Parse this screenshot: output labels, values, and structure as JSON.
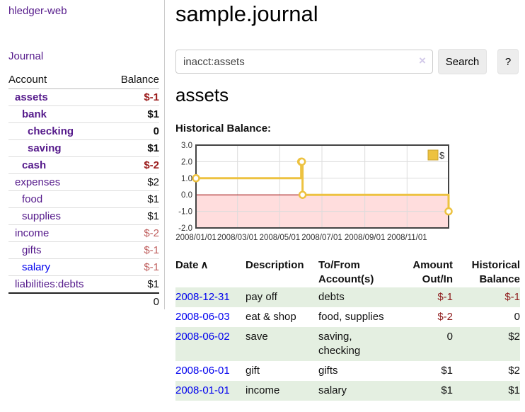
{
  "app_title": "hledger-web",
  "colors": {
    "link_purple": "#551a8b",
    "link_blue": "#0000ee",
    "negative_bold_red": "#9b1b1b",
    "negative_rose": "#c0605f",
    "register_negative_red": "#8f1d1d",
    "row_stripe_green": "#e4efe1",
    "chart_line_gold": "#edc240",
    "chart_negative_fill": "#ffdddd",
    "chart_zero_line": "#990000"
  },
  "sidebar": {
    "journal_link": "Journal",
    "headers": {
      "account": "Account",
      "balance": "Balance"
    },
    "accounts": [
      {
        "name": "assets",
        "balance": "$-1",
        "indent": 1,
        "bold": true,
        "name_color": "purple",
        "balance_color": "darkred"
      },
      {
        "name": "bank",
        "balance": "$1",
        "indent": 2,
        "bold": true,
        "name_color": "purple",
        "balance_color": "black"
      },
      {
        "name": "checking",
        "balance": "0",
        "indent": 3,
        "bold": true,
        "name_color": "purple",
        "balance_color": "black"
      },
      {
        "name": "saving",
        "balance": "$1",
        "indent": 3,
        "bold": true,
        "name_color": "purple",
        "balance_color": "black"
      },
      {
        "name": "cash",
        "balance": "$-2",
        "indent": 2,
        "bold": true,
        "name_color": "purple",
        "balance_color": "darkred"
      },
      {
        "name": "expenses",
        "balance": "$2",
        "indent": 1,
        "bold": false,
        "name_color": "purple",
        "balance_color": "black"
      },
      {
        "name": "food",
        "balance": "$1",
        "indent": 2,
        "bold": false,
        "name_color": "purple",
        "balance_color": "black"
      },
      {
        "name": "supplies",
        "balance": "$1",
        "indent": 2,
        "bold": false,
        "name_color": "purple",
        "balance_color": "black"
      },
      {
        "name": "income",
        "balance": "$-2",
        "indent": 1,
        "bold": false,
        "name_color": "purple",
        "balance_color": "rose"
      },
      {
        "name": "gifts",
        "balance": "$-1",
        "indent": 2,
        "bold": false,
        "name_color": "purple",
        "balance_color": "rose"
      },
      {
        "name": "salary",
        "balance": "$-1",
        "indent": 2,
        "bold": false,
        "name_color": "blue",
        "balance_color": "rose"
      },
      {
        "name": "liabilities:debts",
        "balance": "$1",
        "indent": 1,
        "bold": false,
        "name_color": "purple",
        "balance_color": "black"
      }
    ],
    "total": "0"
  },
  "main": {
    "title": "sample.journal",
    "search": {
      "value": "inacct:assets",
      "clear_icon": "×",
      "search_button": "Search",
      "help_button": "?"
    },
    "account_heading": "assets",
    "section_label": "Historical Balance:"
  },
  "chart_data": {
    "type": "line",
    "step": true,
    "title": "Historical Balance",
    "series": [
      {
        "name": "$",
        "color": "#edc240",
        "points": [
          {
            "date": "2008-01-01",
            "value": 1
          },
          {
            "date": "2008-06-01",
            "value": 2
          },
          {
            "date": "2008-06-02",
            "value": 2
          },
          {
            "date": "2008-06-03",
            "value": 0
          },
          {
            "date": "2008-12-31",
            "value": -1
          }
        ]
      }
    ],
    "x_range": [
      "2008-01-01",
      "2008-12-31"
    ],
    "ylim": [
      -2,
      3
    ],
    "y_ticks": [
      "3.0",
      "2.0",
      "1.0",
      "0.0",
      "-1.0",
      "-2.0"
    ],
    "x_ticks": [
      "2008/01/01",
      "2008/03/01",
      "2008/05/01",
      "2008/07/01",
      "2008/09/01",
      "2008/11/01"
    ],
    "legend": {
      "label": "$",
      "position": "top-right"
    },
    "grid": true,
    "negative_fill": "#ffdddd",
    "zero_line_color": "#990000"
  },
  "register": {
    "headers": {
      "date": "Date",
      "sort_icon": "∧",
      "description": "Description",
      "accounts": "To/From Account(s)",
      "amount": "Amount Out/In",
      "balance": "Historical Balance"
    },
    "rows": [
      {
        "date": "2008-12-31",
        "description": "pay off",
        "accounts": "debts",
        "amount": "$-1",
        "amount_negative": true,
        "balance": "$-1",
        "balance_negative": true
      },
      {
        "date": "2008-06-03",
        "description": "eat & shop",
        "accounts": "food, supplies",
        "amount": "$-2",
        "amount_negative": true,
        "balance": "0",
        "balance_negative": false
      },
      {
        "date": "2008-06-02",
        "description": "save",
        "accounts": "saving, checking",
        "amount": "0",
        "amount_negative": false,
        "balance": "$2",
        "balance_negative": false
      },
      {
        "date": "2008-06-01",
        "description": "gift",
        "accounts": "gifts",
        "amount": "$1",
        "amount_negative": false,
        "balance": "$2",
        "balance_negative": false
      },
      {
        "date": "2008-01-01",
        "description": "income",
        "accounts": "salary",
        "amount": "$1",
        "amount_negative": false,
        "balance": "$1",
        "balance_negative": false
      }
    ]
  }
}
